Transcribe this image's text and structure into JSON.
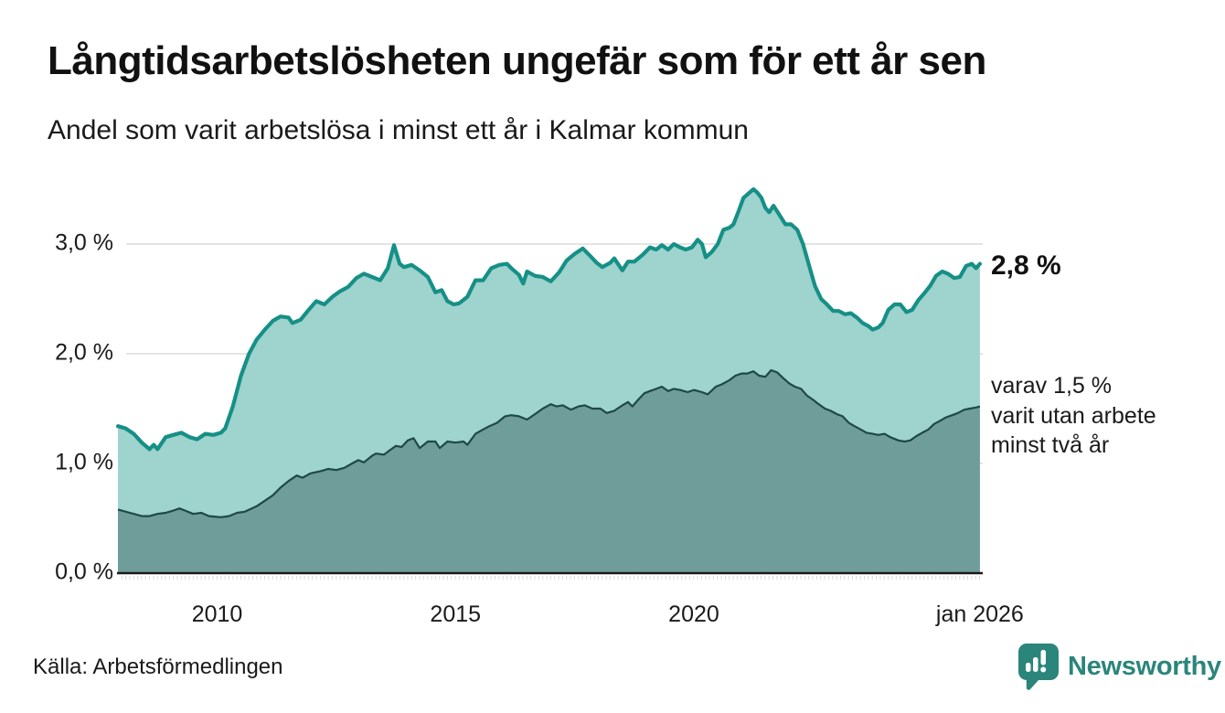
{
  "header": {
    "title": "Långtidsarbetslösheten ungefär som för ett år sen",
    "subtitle": "Andel som varit arbetslösa i minst ett år i Kalmar kommun"
  },
  "annotations": {
    "end_value_primary": "2,8 %",
    "end_note_secondary": "varav 1,5 %\nvarit utan arbete\nminst två år"
  },
  "footer": {
    "source": "Källa: Arbetsförmedlingen",
    "brand": "Newsworthy"
  },
  "colors": {
    "primary_line": "#169086",
    "primary_fill": "#9ED3CE",
    "secondary_line": "#1E4945",
    "secondary_fill": "#6F9D99",
    "grid": "#DCDCDC",
    "axis": "#1A1A1A",
    "minor_tick": "#D8D8D8",
    "brand_teal": "#2B857B",
    "text": "#1A1A1A"
  },
  "chart_data": {
    "type": "area",
    "title": "Långtidsarbetslösheten ungefär som för ett år sen",
    "subtitle": "Andel som varit arbetslösa i minst ett år i Kalmar kommun",
    "unit": "%",
    "x_axis": {
      "range": [
        2007.9,
        2026.06
      ],
      "ticks": [
        {
          "t": 2010,
          "label": "2010"
        },
        {
          "t": 2015,
          "label": "2015"
        },
        {
          "t": 2020,
          "label": "2020"
        },
        {
          "t": 2026,
          "label": "jan 2026"
        }
      ],
      "minor_tick_step_years": 0.0833
    },
    "y_axis": {
      "range": [
        0,
        3.55
      ],
      "ticks": [
        {
          "v": 0,
          "label": "0,0 %"
        },
        {
          "v": 1,
          "label": "1,0 %"
        },
        {
          "v": 2,
          "label": "2,0 %"
        },
        {
          "v": 3,
          "label": "3,0 %"
        }
      ],
      "grid": true
    },
    "legend_position": "end-labels-right",
    "series": [
      {
        "name": "Andel som varit arbetslösa i minst ett år",
        "end_label": "2,8 %",
        "end_value": 2.8,
        "points": [
          [
            2007.92,
            1.34
          ],
          [
            2008.08,
            1.32
          ],
          [
            2008.25,
            1.27
          ],
          [
            2008.42,
            1.19
          ],
          [
            2008.58,
            1.13
          ],
          [
            2008.67,
            1.17
          ],
          [
            2008.75,
            1.13
          ],
          [
            2008.92,
            1.24
          ],
          [
            2009.08,
            1.26
          ],
          [
            2009.25,
            1.28
          ],
          [
            2009.42,
            1.24
          ],
          [
            2009.58,
            1.22
          ],
          [
            2009.75,
            1.27
          ],
          [
            2009.92,
            1.26
          ],
          [
            2010.08,
            1.28
          ],
          [
            2010.17,
            1.32
          ],
          [
            2010.33,
            1.52
          ],
          [
            2010.5,
            1.8
          ],
          [
            2010.67,
            2.0
          ],
          [
            2010.83,
            2.13
          ],
          [
            2011.0,
            2.22
          ],
          [
            2011.17,
            2.3
          ],
          [
            2011.33,
            2.34
          ],
          [
            2011.5,
            2.33
          ],
          [
            2011.58,
            2.28
          ],
          [
            2011.75,
            2.31
          ],
          [
            2011.92,
            2.4
          ],
          [
            2012.08,
            2.48
          ],
          [
            2012.25,
            2.45
          ],
          [
            2012.42,
            2.52
          ],
          [
            2012.58,
            2.57
          ],
          [
            2012.75,
            2.61
          ],
          [
            2012.92,
            2.69
          ],
          [
            2013.08,
            2.73
          ],
          [
            2013.25,
            2.7
          ],
          [
            2013.42,
            2.67
          ],
          [
            2013.58,
            2.78
          ],
          [
            2013.71,
            2.99
          ],
          [
            2013.83,
            2.82
          ],
          [
            2013.92,
            2.79
          ],
          [
            2014.08,
            2.81
          ],
          [
            2014.25,
            2.76
          ],
          [
            2014.42,
            2.7
          ],
          [
            2014.58,
            2.56
          ],
          [
            2014.71,
            2.58
          ],
          [
            2014.83,
            2.48
          ],
          [
            2014.96,
            2.45
          ],
          [
            2015.08,
            2.46
          ],
          [
            2015.25,
            2.52
          ],
          [
            2015.42,
            2.67
          ],
          [
            2015.58,
            2.67
          ],
          [
            2015.75,
            2.78
          ],
          [
            2015.92,
            2.81
          ],
          [
            2016.08,
            2.82
          ],
          [
            2016.17,
            2.78
          ],
          [
            2016.33,
            2.72
          ],
          [
            2016.42,
            2.64
          ],
          [
            2016.5,
            2.75
          ],
          [
            2016.67,
            2.71
          ],
          [
            2016.83,
            2.7
          ],
          [
            2017.0,
            2.66
          ],
          [
            2017.17,
            2.74
          ],
          [
            2017.33,
            2.85
          ],
          [
            2017.5,
            2.91
          ],
          [
            2017.67,
            2.96
          ],
          [
            2017.83,
            2.89
          ],
          [
            2017.96,
            2.83
          ],
          [
            2018.08,
            2.79
          ],
          [
            2018.25,
            2.83
          ],
          [
            2018.33,
            2.87
          ],
          [
            2018.5,
            2.76
          ],
          [
            2018.62,
            2.84
          ],
          [
            2018.75,
            2.84
          ],
          [
            2018.92,
            2.9
          ],
          [
            2019.08,
            2.97
          ],
          [
            2019.21,
            2.95
          ],
          [
            2019.33,
            2.99
          ],
          [
            2019.46,
            2.95
          ],
          [
            2019.58,
            3.0
          ],
          [
            2019.71,
            2.97
          ],
          [
            2019.83,
            2.95
          ],
          [
            2019.96,
            2.97
          ],
          [
            2020.08,
            3.04
          ],
          [
            2020.17,
            3.0
          ],
          [
            2020.25,
            2.88
          ],
          [
            2020.38,
            2.93
          ],
          [
            2020.5,
            3.0
          ],
          [
            2020.62,
            3.13
          ],
          [
            2020.75,
            3.15
          ],
          [
            2020.83,
            3.18
          ],
          [
            2020.92,
            3.28
          ],
          [
            2021.04,
            3.42
          ],
          [
            2021.17,
            3.47
          ],
          [
            2021.25,
            3.5
          ],
          [
            2021.33,
            3.47
          ],
          [
            2021.42,
            3.42
          ],
          [
            2021.5,
            3.33
          ],
          [
            2021.58,
            3.29
          ],
          [
            2021.67,
            3.35
          ],
          [
            2021.79,
            3.27
          ],
          [
            2021.92,
            3.18
          ],
          [
            2022.04,
            3.18
          ],
          [
            2022.17,
            3.13
          ],
          [
            2022.29,
            3.0
          ],
          [
            2022.42,
            2.8
          ],
          [
            2022.54,
            2.62
          ],
          [
            2022.67,
            2.5
          ],
          [
            2022.79,
            2.45
          ],
          [
            2022.92,
            2.39
          ],
          [
            2023.04,
            2.39
          ],
          [
            2023.17,
            2.36
          ],
          [
            2023.29,
            2.37
          ],
          [
            2023.42,
            2.33
          ],
          [
            2023.54,
            2.28
          ],
          [
            2023.67,
            2.25
          ],
          [
            2023.75,
            2.22
          ],
          [
            2023.87,
            2.24
          ],
          [
            2023.96,
            2.28
          ],
          [
            2024.08,
            2.4
          ],
          [
            2024.21,
            2.45
          ],
          [
            2024.33,
            2.45
          ],
          [
            2024.46,
            2.38
          ],
          [
            2024.58,
            2.4
          ],
          [
            2024.71,
            2.49
          ],
          [
            2024.83,
            2.55
          ],
          [
            2024.96,
            2.62
          ],
          [
            2025.08,
            2.71
          ],
          [
            2025.21,
            2.75
          ],
          [
            2025.33,
            2.73
          ],
          [
            2025.46,
            2.69
          ],
          [
            2025.58,
            2.7
          ],
          [
            2025.71,
            2.8
          ],
          [
            2025.83,
            2.82
          ],
          [
            2025.92,
            2.78
          ],
          [
            2026.0,
            2.82
          ]
        ]
      },
      {
        "name": "varav utan arbete minst två år",
        "end_label": "varav 1,5 % varit utan arbete minst två år",
        "end_value": 1.5,
        "points": [
          [
            2007.92,
            0.58
          ],
          [
            2008.17,
            0.55
          ],
          [
            2008.42,
            0.52
          ],
          [
            2008.58,
            0.52
          ],
          [
            2008.75,
            0.54
          ],
          [
            2008.92,
            0.55
          ],
          [
            2009.08,
            0.57
          ],
          [
            2009.21,
            0.59
          ],
          [
            2009.33,
            0.57
          ],
          [
            2009.5,
            0.54
          ],
          [
            2009.67,
            0.55
          ],
          [
            2009.83,
            0.52
          ],
          [
            2010.08,
            0.51
          ],
          [
            2010.25,
            0.52
          ],
          [
            2010.42,
            0.55
          ],
          [
            2010.58,
            0.56
          ],
          [
            2010.83,
            0.61
          ],
          [
            2011.0,
            0.66
          ],
          [
            2011.17,
            0.71
          ],
          [
            2011.33,
            0.78
          ],
          [
            2011.5,
            0.84
          ],
          [
            2011.67,
            0.89
          ],
          [
            2011.79,
            0.87
          ],
          [
            2011.96,
            0.91
          ],
          [
            2012.17,
            0.93
          ],
          [
            2012.33,
            0.95
          ],
          [
            2012.5,
            0.94
          ],
          [
            2012.67,
            0.96
          ],
          [
            2012.83,
            1.0
          ],
          [
            2012.96,
            1.03
          ],
          [
            2013.08,
            1.01
          ],
          [
            2013.25,
            1.07
          ],
          [
            2013.33,
            1.09
          ],
          [
            2013.5,
            1.08
          ],
          [
            2013.62,
            1.12
          ],
          [
            2013.75,
            1.16
          ],
          [
            2013.87,
            1.15
          ],
          [
            2014.0,
            1.21
          ],
          [
            2014.12,
            1.23
          ],
          [
            2014.25,
            1.14
          ],
          [
            2014.42,
            1.2
          ],
          [
            2014.58,
            1.2
          ],
          [
            2014.67,
            1.14
          ],
          [
            2014.83,
            1.2
          ],
          [
            2015.0,
            1.19
          ],
          [
            2015.17,
            1.2
          ],
          [
            2015.25,
            1.17
          ],
          [
            2015.42,
            1.27
          ],
          [
            2015.58,
            1.31
          ],
          [
            2015.71,
            1.34
          ],
          [
            2015.87,
            1.37
          ],
          [
            2016.04,
            1.43
          ],
          [
            2016.17,
            1.44
          ],
          [
            2016.33,
            1.43
          ],
          [
            2016.5,
            1.4
          ],
          [
            2016.67,
            1.45
          ],
          [
            2016.83,
            1.5
          ],
          [
            2017.0,
            1.54
          ],
          [
            2017.12,
            1.52
          ],
          [
            2017.25,
            1.53
          ],
          [
            2017.42,
            1.49
          ],
          [
            2017.58,
            1.52
          ],
          [
            2017.71,
            1.53
          ],
          [
            2017.87,
            1.5
          ],
          [
            2018.04,
            1.5
          ],
          [
            2018.17,
            1.46
          ],
          [
            2018.33,
            1.48
          ],
          [
            2018.5,
            1.53
          ],
          [
            2018.62,
            1.56
          ],
          [
            2018.71,
            1.52
          ],
          [
            2018.83,
            1.58
          ],
          [
            2018.96,
            1.64
          ],
          [
            2019.08,
            1.66
          ],
          [
            2019.21,
            1.68
          ],
          [
            2019.33,
            1.7
          ],
          [
            2019.46,
            1.66
          ],
          [
            2019.58,
            1.68
          ],
          [
            2019.71,
            1.67
          ],
          [
            2019.87,
            1.65
          ],
          [
            2020.0,
            1.67
          ],
          [
            2020.17,
            1.65
          ],
          [
            2020.29,
            1.63
          ],
          [
            2020.46,
            1.7
          ],
          [
            2020.58,
            1.72
          ],
          [
            2020.75,
            1.76
          ],
          [
            2020.87,
            1.8
          ],
          [
            2021.0,
            1.82
          ],
          [
            2021.12,
            1.82
          ],
          [
            2021.25,
            1.84
          ],
          [
            2021.37,
            1.8
          ],
          [
            2021.5,
            1.79
          ],
          [
            2021.62,
            1.85
          ],
          [
            2021.75,
            1.83
          ],
          [
            2021.87,
            1.78
          ],
          [
            2022.0,
            1.73
          ],
          [
            2022.12,
            1.7
          ],
          [
            2022.25,
            1.68
          ],
          [
            2022.37,
            1.62
          ],
          [
            2022.5,
            1.58
          ],
          [
            2022.62,
            1.54
          ],
          [
            2022.75,
            1.5
          ],
          [
            2022.87,
            1.48
          ],
          [
            2023.0,
            1.45
          ],
          [
            2023.12,
            1.43
          ],
          [
            2023.25,
            1.37
          ],
          [
            2023.37,
            1.34
          ],
          [
            2023.5,
            1.31
          ],
          [
            2023.62,
            1.28
          ],
          [
            2023.75,
            1.27
          ],
          [
            2023.87,
            1.26
          ],
          [
            2024.0,
            1.27
          ],
          [
            2024.12,
            1.24
          ],
          [
            2024.29,
            1.21
          ],
          [
            2024.42,
            1.2
          ],
          [
            2024.54,
            1.21
          ],
          [
            2024.67,
            1.25
          ],
          [
            2024.79,
            1.28
          ],
          [
            2024.92,
            1.31
          ],
          [
            2025.04,
            1.36
          ],
          [
            2025.17,
            1.39
          ],
          [
            2025.29,
            1.42
          ],
          [
            2025.42,
            1.44
          ],
          [
            2025.54,
            1.46
          ],
          [
            2025.67,
            1.49
          ],
          [
            2025.79,
            1.5
          ],
          [
            2025.92,
            1.51
          ],
          [
            2026.0,
            1.52
          ]
        ]
      }
    ]
  }
}
